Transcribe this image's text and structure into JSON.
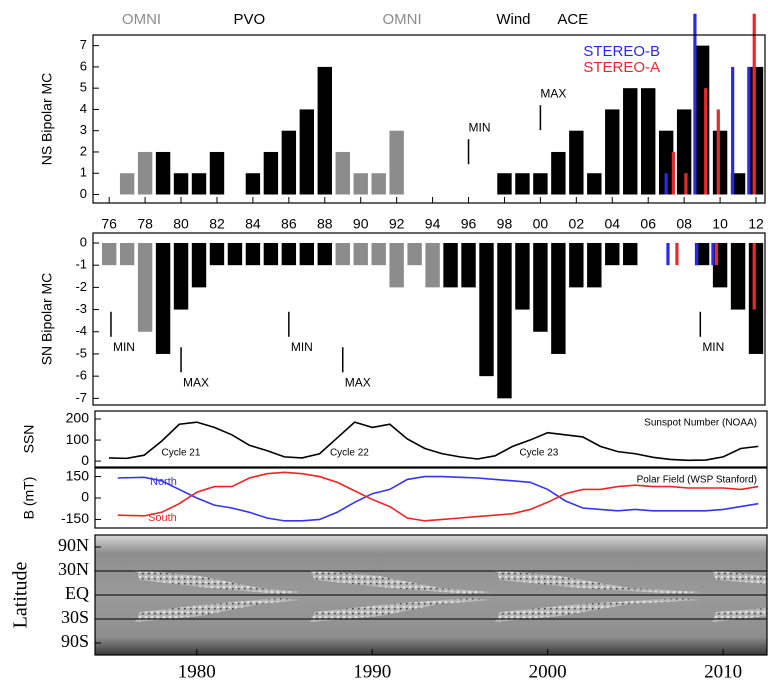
{
  "chart_data": [
    {
      "type": "bar",
      "y_label": "NS Bipolar MC",
      "xlim": [
        1975.1,
        2012.5
      ],
      "ylim": [
        -0.4,
        7.5
      ],
      "xticks": [
        {
          "value": 1976,
          "label": "76"
        },
        {
          "value": 1978,
          "label": "78"
        },
        {
          "value": 1980,
          "label": "80"
        },
        {
          "value": 1982,
          "label": "82"
        },
        {
          "value": 1984,
          "label": "84"
        },
        {
          "value": 1986,
          "label": "86"
        },
        {
          "value": 1988,
          "label": "88"
        },
        {
          "value": 1990,
          "label": "90"
        },
        {
          "value": 1992,
          "label": "92"
        },
        {
          "value": 1994,
          "label": "94"
        },
        {
          "value": 1996,
          "label": "96"
        },
        {
          "value": 1998,
          "label": "98"
        },
        {
          "value": 2000,
          "label": "00"
        },
        {
          "value": 2002,
          "label": "02"
        },
        {
          "value": 2004,
          "label": "04"
        },
        {
          "value": 2006,
          "label": "06"
        },
        {
          "value": 2008,
          "label": "08"
        },
        {
          "value": 2010,
          "label": "10"
        },
        {
          "value": 2012,
          "label": "12"
        }
      ],
      "yticks": [
        0,
        1,
        2,
        3,
        4,
        5,
        6,
        7
      ],
      "x": [
        1976,
        1977,
        1978,
        1979,
        1980,
        1981,
        1982,
        1983,
        1984,
        1985,
        1986,
        1987,
        1988,
        1989,
        1990,
        1991,
        1992,
        1993,
        1994,
        1995,
        1996,
        1997,
        1998,
        1999,
        2000,
        2001,
        2002,
        2003,
        2004,
        2005,
        2006,
        2007,
        2008,
        2009,
        2010,
        2011,
        2012
      ],
      "series": [
        {
          "color": "#8c8c8c",
          "values": [
            null,
            1,
            2,
            null,
            null,
            null,
            null,
            null,
            null,
            null,
            null,
            null,
            null,
            2,
            1,
            1,
            3,
            null,
            null,
            null,
            null,
            null,
            null,
            null,
            null,
            null,
            null,
            null,
            null,
            null,
            null,
            null,
            null,
            null,
            null,
            null,
            null
          ]
        },
        {
          "color": "#000000",
          "values": [
            null,
            null,
            null,
            2,
            1,
            1,
            2,
            null,
            1,
            2,
            3,
            4,
            6,
            null,
            null,
            null,
            null,
            null,
            null,
            null,
            null,
            null,
            1,
            1,
            1,
            2,
            3,
            1,
            4,
            5,
            5,
            3,
            4,
            7,
            3,
            1,
            6
          ]
        }
      ],
      "thin_bars": [
        {
          "name": "STEREO-B",
          "color": "#2a2ae6",
          "x": [
            2007.0,
            2008.6,
            2010.7,
            2011.6
          ],
          "values": [
            1,
            8.5,
            6,
            6
          ]
        },
        {
          "name": "STEREO-A",
          "color": "#e62a2a",
          "x": [
            2007.4,
            2008.1,
            2009.2,
            2009.9,
            2011.9
          ],
          "values": [
            2,
            1,
            5,
            4,
            8.5
          ]
        }
      ],
      "missions": [
        {
          "text": "OMNI",
          "x": 1977.8,
          "color": "#8c8c8c"
        },
        {
          "text": "PVO",
          "x": 1983.8,
          "color": "#000000"
        },
        {
          "text": "OMNI",
          "x": 1992.3,
          "color": "#8c8c8c"
        },
        {
          "text": "Wind",
          "x": 1998.5,
          "color": "#000000"
        },
        {
          "text": "ACE",
          "x": 2001.8,
          "color": "#000000"
        }
      ],
      "markers": [
        {
          "text": "MIN",
          "x": 1996,
          "y": 2.6
        },
        {
          "text": "MAX",
          "x": 2000,
          "y": 4.2
        }
      ]
    },
    {
      "type": "bar",
      "y_label": "SN Bipolar MC",
      "xlim": [
        1975.1,
        2012.5
      ],
      "ylim": [
        -7.3,
        0.45
      ],
      "yticks": [
        0,
        -1,
        -2,
        -3,
        -4,
        -5,
        -6,
        -7
      ],
      "x": [
        1976,
        1977,
        1978,
        1979,
        1980,
        1981,
        1982,
        1983,
        1984,
        1985,
        1986,
        1987,
        1988,
        1989,
        1990,
        1991,
        1992,
        1993,
        1994,
        1995,
        1996,
        1997,
        1998,
        1999,
        2000,
        2001,
        2002,
        2003,
        2004,
        2005,
        2006,
        2007,
        2008,
        2009,
        2010,
        2011,
        2012
      ],
      "series": [
        {
          "color": "#8c8c8c",
          "values": [
            -1,
            -1,
            -4,
            null,
            null,
            null,
            null,
            null,
            null,
            null,
            null,
            null,
            null,
            -1,
            -1,
            -1,
            -2,
            -1,
            -2,
            null,
            null,
            null,
            null,
            null,
            null,
            null,
            null,
            null,
            null,
            null,
            null,
            null,
            null,
            null,
            null,
            null,
            null
          ]
        },
        {
          "color": "#000000",
          "values": [
            null,
            null,
            null,
            -5,
            -3,
            -2,
            -1,
            -1,
            -1,
            -1,
            -1,
            -1,
            -1,
            null,
            null,
            null,
            null,
            null,
            null,
            -2,
            -2,
            -6,
            -7,
            -3,
            -4,
            -5,
            -2,
            -2,
            -1,
            -1,
            null,
            null,
            null,
            -1,
            -2,
            -3,
            -5
          ]
        }
      ],
      "thin_bars": [
        {
          "color": "#2a2ae6",
          "x": [
            2007.1,
            2008.7,
            2009.6
          ],
          "values": [
            -1,
            -1,
            -1
          ]
        },
        {
          "color": "#e62a2a",
          "x": [
            2007.6,
            2009.8,
            2011.9
          ],
          "values": [
            -1,
            -1,
            -3
          ]
        }
      ],
      "markers": [
        {
          "text": "MIN",
          "x": 1976.1,
          "y": -3.1
        },
        {
          "text": "MAX",
          "x": 1980.0,
          "y": -4.7
        },
        {
          "text": "MIN",
          "x": 1986.0,
          "y": -3.1
        },
        {
          "text": "MAX",
          "x": 1989.0,
          "y": -4.7
        },
        {
          "text": "MIN",
          "x": 2008.9,
          "y": -3.1
        }
      ]
    },
    {
      "type": "line",
      "y_label": "SSN",
      "note": "Sunspot Number (NOAA)",
      "xlim": [
        1974.2,
        2012.5
      ],
      "ylim": [
        -28,
        238
      ],
      "yticks": [
        0,
        100,
        200
      ],
      "x": [
        1975,
        1976,
        1977,
        1978,
        1979,
        1980,
        1981,
        1982,
        1983,
        1984,
        1985,
        1986,
        1987,
        1988,
        1989,
        1990,
        1991,
        1992,
        1993,
        1994,
        1995,
        1996,
        1997,
        1998,
        1999,
        2000,
        2001,
        2002,
        2003,
        2004,
        2005,
        2006,
        2007,
        2008,
        2009,
        2010,
        2011,
        2012
      ],
      "series": [
        {
          "color": "#000000",
          "values": [
            15,
            13,
            28,
            95,
            175,
            185,
            160,
            125,
            75,
            50,
            20,
            15,
            35,
            110,
            185,
            160,
            175,
            105,
            60,
            35,
            20,
            10,
            25,
            70,
            100,
            135,
            125,
            115,
            70,
            45,
            35,
            18,
            8,
            4,
            5,
            20,
            60,
            70
          ]
        }
      ],
      "annotations": [
        {
          "text": "Cycle 21",
          "x": 1979.1,
          "y": 38
        },
        {
          "text": "Cycle 22",
          "x": 1988.7,
          "y": 38
        },
        {
          "text": "Cycle 23",
          "x": 1999.5,
          "y": 38
        }
      ]
    },
    {
      "type": "line",
      "y_label": "B (mT)",
      "note": "Polar Field (WSP Stanford)",
      "xlim": [
        1974.2,
        2012.5
      ],
      "ylim": [
        -210,
        210
      ],
      "yticks": [
        150,
        0,
        -150
      ],
      "x": [
        1975.5,
        1977,
        1978,
        1979,
        1980,
        1981,
        1982,
        1983,
        1984,
        1985,
        1986,
        1987,
        1988,
        1989,
        1990,
        1991,
        1992,
        1993,
        1994,
        1995,
        1996,
        1997,
        1998,
        1999,
        2000,
        2001,
        2002,
        2003,
        2004,
        2005,
        2006,
        2007,
        2008,
        2009,
        2010,
        2011,
        2012
      ],
      "series": [
        {
          "name": "North",
          "color": "#3535ee",
          "values": [
            140,
            145,
            120,
            60,
            0,
            -50,
            -70,
            -100,
            -140,
            -160,
            -160,
            -150,
            -100,
            -30,
            30,
            60,
            130,
            150,
            150,
            145,
            140,
            130,
            120,
            110,
            60,
            -20,
            -70,
            -80,
            -90,
            -80,
            -90,
            -90,
            -90,
            -90,
            -80,
            -60,
            -40
          ]
        },
        {
          "name": "South",
          "color": "#ee2525",
          "values": [
            -120,
            -125,
            -100,
            -40,
            40,
            80,
            80,
            140,
            170,
            180,
            170,
            150,
            110,
            50,
            -10,
            -60,
            -140,
            -160,
            -150,
            -140,
            -130,
            -120,
            -110,
            -80,
            -30,
            30,
            60,
            60,
            80,
            90,
            80,
            80,
            70,
            70,
            70,
            60,
            80
          ]
        }
      ]
    },
    {
      "type": "image",
      "y_label": "Latitude",
      "y_scale": "sine",
      "grid": true,
      "xlim": [
        1974.2,
        2012.5
      ],
      "ylim": [
        -90,
        90
      ],
      "xticks": [
        1980,
        1990,
        2000,
        2010
      ],
      "yticks": [
        {
          "value": 90,
          "label": "90N"
        },
        {
          "value": 30,
          "label": "30N"
        },
        {
          "value": 0,
          "label": "EQ"
        },
        {
          "value": -30,
          "label": "30S"
        },
        {
          "value": -90,
          "label": "90S"
        }
      ]
    }
  ]
}
